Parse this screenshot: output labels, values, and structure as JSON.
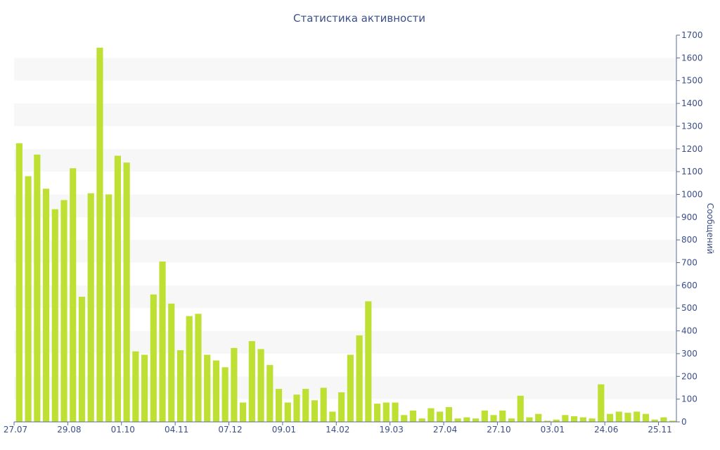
{
  "chart_data": {
    "type": "bar",
    "title": "Статистика активности",
    "xlabel": "",
    "ylabel": "Сообщений",
    "ylim": [
      0,
      1700
    ],
    "y_ticks": [
      0,
      100,
      200,
      300,
      400,
      500,
      600,
      700,
      800,
      900,
      1000,
      1100,
      1200,
      1300,
      1400,
      1500,
      1600,
      1700
    ],
    "y_axis_position": "right",
    "grid": "alternating-bands",
    "x_tick_labels": [
      {
        "index": 0,
        "label": "27.07"
      },
      {
        "index": 6,
        "label": "29.08"
      },
      {
        "index": 12,
        "label": "01.10"
      },
      {
        "index": 18,
        "label": "04.11"
      },
      {
        "index": 24,
        "label": "07.12"
      },
      {
        "index": 30,
        "label": "09.01"
      },
      {
        "index": 36,
        "label": "14.02"
      },
      {
        "index": 42,
        "label": "19.03"
      },
      {
        "index": 48,
        "label": "27.04"
      },
      {
        "index": 54,
        "label": "27.10"
      },
      {
        "index": 60,
        "label": "03.01"
      },
      {
        "index": 66,
        "label": "24.06"
      },
      {
        "index": 72,
        "label": "25.11"
      }
    ],
    "values": [
      1225,
      1080,
      1175,
      1025,
      935,
      975,
      1115,
      550,
      1005,
      1645,
      1000,
      1170,
      1140,
      310,
      295,
      560,
      705,
      520,
      315,
      465,
      475,
      295,
      270,
      240,
      325,
      85,
      355,
      320,
      250,
      145,
      85,
      120,
      145,
      95,
      150,
      45,
      130,
      295,
      380,
      530,
      80,
      85,
      85,
      30,
      50,
      15,
      60,
      45,
      65,
      15,
      20,
      15,
      50,
      30,
      50,
      15,
      115,
      20,
      35,
      5,
      10,
      30,
      25,
      20,
      15,
      165,
      35,
      45,
      40,
      45,
      35,
      10,
      20,
      5
    ],
    "colors": {
      "bar": "#bde032",
      "text": "#3b4f8a",
      "band": "#f7f7f7"
    }
  }
}
